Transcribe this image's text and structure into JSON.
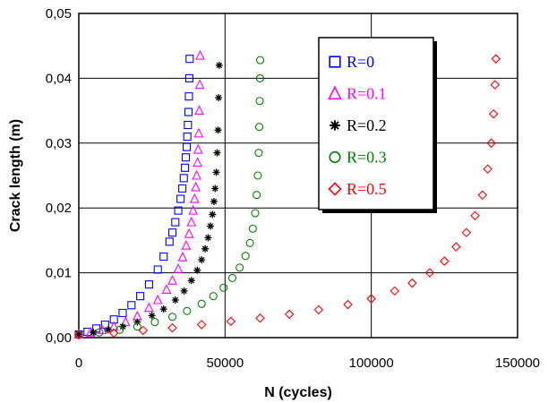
{
  "chart_data": {
    "type": "scatter",
    "title": "",
    "xlabel": "N (cycles)",
    "ylabel": "Crack length (m)",
    "xlim": [
      0,
      150000
    ],
    "ylim": [
      0,
      0.05
    ],
    "x_ticks": [
      0,
      50000,
      100000,
      150000
    ],
    "x_tick_labels": [
      "0",
      "50000",
      "100000",
      "150000"
    ],
    "y_ticks": [
      0,
      0.01,
      0.02,
      0.03,
      0.04,
      0.05
    ],
    "y_tick_labels": [
      "0,00",
      "0,01",
      "0,02",
      "0,03",
      "0,04",
      "0,05"
    ],
    "grid": true,
    "legend_position": "top-right",
    "series": [
      {
        "name": "R=0",
        "marker": "square",
        "color": "#0000ff",
        "x": [
          0,
          3000,
          6000,
          9000,
          12000,
          15000,
          18000,
          21000,
          24000,
          27000,
          29000,
          31000,
          32000,
          33000,
          34000,
          34800,
          35400,
          35900,
          36300,
          36600,
          36900,
          37100,
          37300,
          37500,
          37650,
          37800,
          37900
        ],
        "y": [
          0.0005,
          0.0009,
          0.0014,
          0.002,
          0.0028,
          0.0038,
          0.005,
          0.0064,
          0.0082,
          0.0105,
          0.0125,
          0.0148,
          0.0162,
          0.0178,
          0.0196,
          0.0214,
          0.023,
          0.0246,
          0.0262,
          0.0278,
          0.0294,
          0.031,
          0.0328,
          0.0348,
          0.0372,
          0.04,
          0.043
        ]
      },
      {
        "name": "R=0.1",
        "marker": "triangle",
        "color": "#ff00ff",
        "x": [
          0,
          4000,
          8000,
          12000,
          16000,
          20000,
          24000,
          27000,
          30000,
          32000,
          34000,
          35500,
          36700,
          37700,
          38500,
          39100,
          39600,
          40000,
          40300,
          40600,
          40800,
          41000,
          41200,
          41350,
          41500
        ],
        "y": [
          0.0005,
          0.0008,
          0.0012,
          0.0017,
          0.0024,
          0.0033,
          0.0046,
          0.0058,
          0.0074,
          0.0088,
          0.0106,
          0.0124,
          0.0142,
          0.016,
          0.0178,
          0.0196,
          0.0214,
          0.0232,
          0.025,
          0.027,
          0.029,
          0.0315,
          0.035,
          0.039,
          0.0435
        ]
      },
      {
        "name": "R=0.2",
        "marker": "star",
        "color": "#000000",
        "x": [
          0,
          5000,
          10000,
          15000,
          20000,
          25000,
          29000,
          33000,
          36000,
          38500,
          40500,
          42000,
          43200,
          44200,
          45000,
          45700,
          46200,
          46600,
          47000,
          47300,
          47600,
          47800,
          48000
        ],
        "y": [
          0.0005,
          0.0008,
          0.0012,
          0.0017,
          0.0024,
          0.0034,
          0.0044,
          0.0058,
          0.0072,
          0.0088,
          0.0104,
          0.012,
          0.0137,
          0.0154,
          0.0172,
          0.019,
          0.021,
          0.023,
          0.0255,
          0.0285,
          0.032,
          0.037,
          0.042
        ]
      },
      {
        "name": "R=0.3",
        "marker": "circle",
        "color": "#008000",
        "x": [
          0,
          7000,
          14000,
          20000,
          26000,
          32000,
          37000,
          42000,
          46000,
          49500,
          52500,
          55000,
          57000,
          58500,
          59500,
          60300,
          60800,
          61200,
          61500,
          61700,
          61850,
          61950,
          62000
        ],
        "y": [
          0.0005,
          0.0008,
          0.0012,
          0.0017,
          0.0024,
          0.0032,
          0.0041,
          0.0052,
          0.0064,
          0.0077,
          0.0092,
          0.0108,
          0.0126,
          0.0146,
          0.0168,
          0.0192,
          0.022,
          0.025,
          0.0285,
          0.0325,
          0.0365,
          0.04,
          0.0428
        ]
      },
      {
        "name": "R=0.5",
        "marker": "diamond",
        "color": "#ff0000",
        "x": [
          0,
          12000,
          22000,
          32000,
          42000,
          52000,
          62000,
          72000,
          82000,
          92000,
          100000,
          108000,
          114000,
          120000,
          125000,
          129000,
          132500,
          135500,
          138000,
          139800,
          141000,
          141800,
          142300,
          142600
        ],
        "y": [
          0.0004,
          0.0007,
          0.0011,
          0.0015,
          0.002,
          0.0025,
          0.003,
          0.0036,
          0.0043,
          0.0051,
          0.006,
          0.0072,
          0.0084,
          0.01,
          0.0118,
          0.014,
          0.0162,
          0.0188,
          0.022,
          0.026,
          0.03,
          0.0345,
          0.039,
          0.043
        ]
      }
    ]
  }
}
